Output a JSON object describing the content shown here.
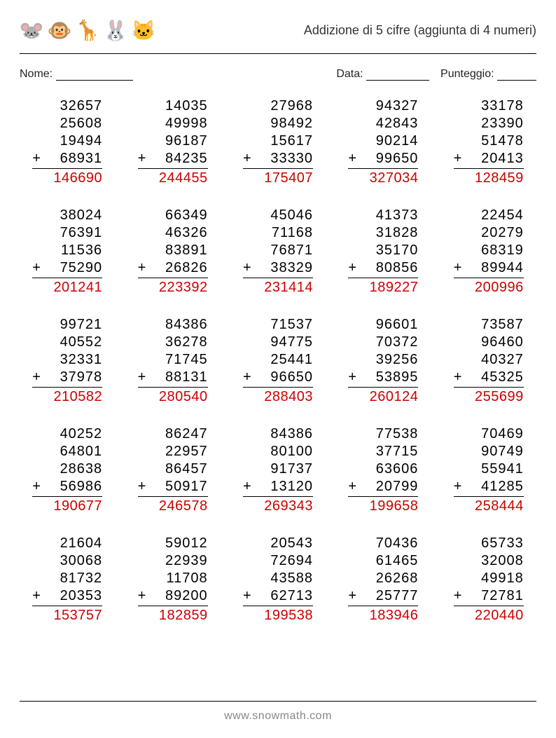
{
  "title": "Addizione di 5 cifre (aggiunta di 4 numeri)",
  "labels": {
    "name": "Nome:",
    "date": "Data:",
    "score": "Punteggio:"
  },
  "blanks": {
    "name_width": 110,
    "date_width": 90,
    "score_width": 56
  },
  "colors": {
    "answer": "#cc0000",
    "text": "#000000",
    "footer": "#888888",
    "background": "#ffffff",
    "border": "#000000"
  },
  "typography": {
    "title_fontsize": 18,
    "label_fontsize": 16,
    "number_fontsize": 20,
    "footer_fontsize": 16,
    "font_family": "Arial"
  },
  "layout": {
    "columns": 5,
    "rows": 5,
    "column_gap": 34,
    "row_gap": 28,
    "problem_width": 100
  },
  "operator": "+",
  "animals": [
    {
      "name": "mouse",
      "emoji": "🐭"
    },
    {
      "name": "monkey",
      "emoji": "🐵"
    },
    {
      "name": "giraffe",
      "emoji": "🦒"
    },
    {
      "name": "rabbit",
      "emoji": "🐰"
    },
    {
      "name": "cat",
      "emoji": "🐱"
    }
  ],
  "problems": [
    {
      "addends": [
        "32657",
        "25608",
        "19494",
        "68931"
      ],
      "answer": "146690"
    },
    {
      "addends": [
        "14035",
        "49998",
        "96187",
        "84235"
      ],
      "answer": "244455"
    },
    {
      "addends": [
        "27968",
        "98492",
        "15617",
        "33330"
      ],
      "answer": "175407"
    },
    {
      "addends": [
        "94327",
        "42843",
        "90214",
        "99650"
      ],
      "answer": "327034"
    },
    {
      "addends": [
        "33178",
        "23390",
        "51478",
        "20413"
      ],
      "answer": "128459"
    },
    {
      "addends": [
        "38024",
        "76391",
        "11536",
        "75290"
      ],
      "answer": "201241"
    },
    {
      "addends": [
        "66349",
        "46326",
        "83891",
        "26826"
      ],
      "answer": "223392"
    },
    {
      "addends": [
        "45046",
        "71168",
        "76871",
        "38329"
      ],
      "answer": "231414"
    },
    {
      "addends": [
        "41373",
        "31828",
        "35170",
        "80856"
      ],
      "answer": "189227"
    },
    {
      "addends": [
        "22454",
        "20279",
        "68319",
        "89944"
      ],
      "answer": "200996"
    },
    {
      "addends": [
        "99721",
        "40552",
        "32331",
        "37978"
      ],
      "answer": "210582"
    },
    {
      "addends": [
        "84386",
        "36278",
        "71745",
        "88131"
      ],
      "answer": "280540"
    },
    {
      "addends": [
        "71537",
        "94775",
        "25441",
        "96650"
      ],
      "answer": "288403"
    },
    {
      "addends": [
        "96601",
        "70372",
        "39256",
        "53895"
      ],
      "answer": "260124"
    },
    {
      "addends": [
        "73587",
        "96460",
        "40327",
        "45325"
      ],
      "answer": "255699"
    },
    {
      "addends": [
        "40252",
        "64801",
        "28638",
        "56986"
      ],
      "answer": "190677"
    },
    {
      "addends": [
        "86247",
        "22957",
        "86457",
        "50917"
      ],
      "answer": "246578"
    },
    {
      "addends": [
        "84386",
        "80100",
        "91737",
        "13120"
      ],
      "answer": "269343"
    },
    {
      "addends": [
        "77538",
        "37715",
        "63606",
        "20799"
      ],
      "answer": "199658"
    },
    {
      "addends": [
        "70469",
        "90749",
        "55941",
        "41285"
      ],
      "answer": "258444"
    },
    {
      "addends": [
        "21604",
        "30068",
        "81732",
        "20353"
      ],
      "answer": "153757"
    },
    {
      "addends": [
        "59012",
        "22939",
        "11708",
        "89200"
      ],
      "answer": "182859"
    },
    {
      "addends": [
        "20543",
        "72694",
        "43588",
        "62713"
      ],
      "answer": "199538"
    },
    {
      "addends": [
        "70436",
        "61465",
        "26268",
        "25777"
      ],
      "answer": "183946"
    },
    {
      "addends": [
        "65733",
        "32008",
        "49918",
        "72781"
      ],
      "answer": "220440"
    }
  ],
  "footer": "www.snowmath.com"
}
